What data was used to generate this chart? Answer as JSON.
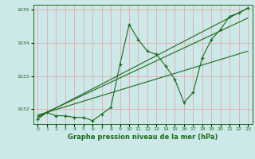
{
  "bg_color": "#cce8e8",
  "grid_color": "#e8a0a0",
  "line_color": "#1a6b1a",
  "font_color": "#1a6b1a",
  "title": "Graphe pression niveau de la mer (hPa)",
  "xlim": [
    -0.5,
    23.5
  ],
  "ylim": [
    1031.55,
    1035.15
  ],
  "yticks": [
    1032,
    1033,
    1034,
    1035
  ],
  "xticks": [
    0,
    1,
    2,
    3,
    4,
    5,
    6,
    7,
    8,
    9,
    10,
    11,
    12,
    13,
    14,
    15,
    16,
    17,
    18,
    19,
    20,
    21,
    22,
    23
  ],
  "main_x": [
    0,
    1,
    2,
    3,
    4,
    5,
    6,
    7,
    8,
    9,
    10,
    11,
    12,
    13,
    14,
    15,
    16,
    17,
    18,
    19,
    20,
    21,
    22,
    23
  ],
  "main_y": [
    1031.7,
    1031.9,
    1031.8,
    1031.8,
    1031.75,
    1031.75,
    1031.65,
    1031.85,
    1032.05,
    1033.35,
    1034.55,
    1034.1,
    1033.75,
    1033.65,
    1033.3,
    1032.9,
    1032.2,
    1032.5,
    1033.55,
    1034.1,
    1034.4,
    1034.8,
    1034.9,
    1035.05
  ],
  "trend1_x": [
    0,
    23
  ],
  "trend1_y": [
    1031.75,
    1035.05
  ],
  "trend2_x": [
    0,
    23
  ],
  "trend2_y": [
    1031.78,
    1034.75
  ],
  "trend3_x": [
    0,
    23
  ],
  "trend3_y": [
    1031.82,
    1033.75
  ]
}
